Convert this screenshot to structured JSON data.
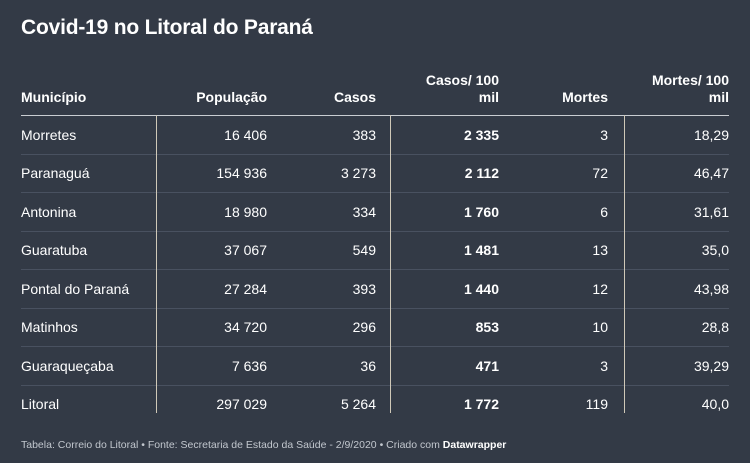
{
  "chart_data": {
    "type": "table",
    "title": "Covid-19 no Litoral do Paraná",
    "columns": [
      "Município",
      "População",
      "Casos",
      "Casos/ 100 mil",
      "Mortes",
      "Mortes/ 100 mil"
    ],
    "rows": [
      [
        "Morretes",
        "16 406",
        "383",
        "2 335",
        "3",
        "18,29"
      ],
      [
        "Paranaguá",
        "154 936",
        "3 273",
        "2 112",
        "72",
        "46,47"
      ],
      [
        "Antonina",
        "18 980",
        "334",
        "1 760",
        "6",
        "31,61"
      ],
      [
        "Guaratuba",
        "37 067",
        "549",
        "1 481",
        "13",
        "35,0"
      ],
      [
        "Pontal do Paraná",
        "27 284",
        "393",
        "1 440",
        "12",
        "43,98"
      ],
      [
        "Matinhos",
        "34 720",
        "296",
        "853",
        "10",
        "28,8"
      ],
      [
        "Guaraqueçaba",
        "7 636",
        "36",
        "471",
        "3",
        "39,29"
      ],
      [
        "Litoral",
        "297 029",
        "5 264",
        "1 772",
        "119",
        "40,0"
      ]
    ],
    "footer": "Tabela: Correio do Litoral • Fonte: Secretaria de Estado da Saúde - 2/9/2020 • Criado com ",
    "footer_brand": "Datawrapper"
  },
  "colors": {
    "background": "#333a46",
    "text": "#ffffff",
    "divider": "#cfc8b8",
    "row_border": "#495160"
  }
}
